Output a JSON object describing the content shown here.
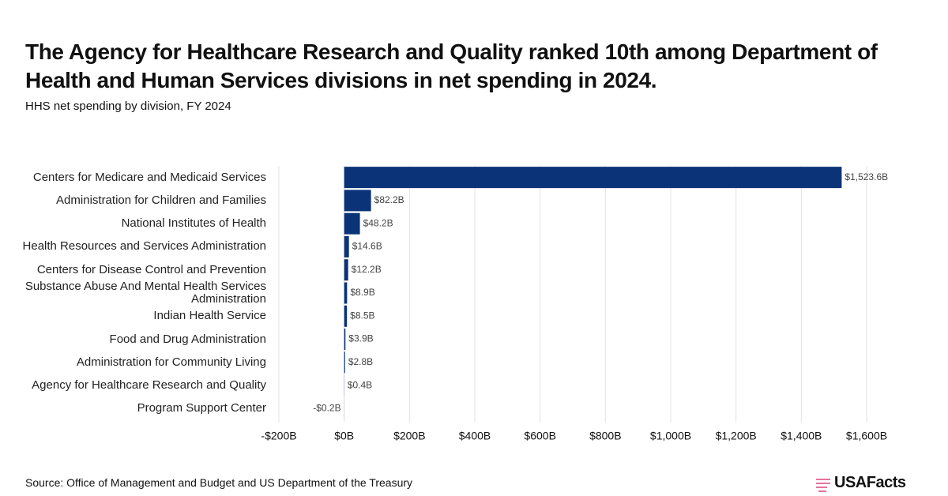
{
  "chart_data": {
    "type": "bar",
    "orientation": "horizontal",
    "title": "The Agency for Healthcare Research and Quality ranked 10th among Department of Health and Human Services divisions in net spending in 2024.",
    "subtitle": "HHS net spending by division, FY 2024",
    "categories": [
      "Centers for Medicare and Medicaid Services",
      "Administration for Children and Families",
      "National Institutes of Health",
      "Health Resources and Services Administration",
      "Centers for Disease Control and Prevention",
      "Substance Abuse And Mental Health Services Administration",
      "Indian Health Service",
      "Food and Drug Administration",
      "Administration for Community Living",
      "Agency for Healthcare Research and Quality",
      "Program Support Center"
    ],
    "values": [
      1523.6,
      82.2,
      48.2,
      14.6,
      12.2,
      8.9,
      8.5,
      3.9,
      2.8,
      0.4,
      -0.2
    ],
    "value_labels": [
      "$1,523.6B",
      "$82.2B",
      "$48.2B",
      "$14.6B",
      "$12.2B",
      "$8.9B",
      "$8.5B",
      "$3.9B",
      "$2.8B",
      "$0.4B",
      "-$0.2B"
    ],
    "color": "#0b3377",
    "xlim": [
      -200,
      1600
    ],
    "xticks": [
      {
        "value": -200,
        "label": "-$200B"
      },
      {
        "value": 0,
        "label": "$0B"
      },
      {
        "value": 200,
        "label": "$200B"
      },
      {
        "value": 400,
        "label": "$400B"
      },
      {
        "value": 600,
        "label": "$600B"
      },
      {
        "value": 800,
        "label": "$800B"
      },
      {
        "value": 1000,
        "label": "$1,000B"
      },
      {
        "value": 1200,
        "label": "$1,200B"
      },
      {
        "value": 1400,
        "label": "$1,400B"
      },
      {
        "value": 1600,
        "label": "$1,600B"
      }
    ],
    "grid": true,
    "source": "Source: Office of Management and Budget and US Department of the Treasury",
    "logo": "USAFacts"
  }
}
